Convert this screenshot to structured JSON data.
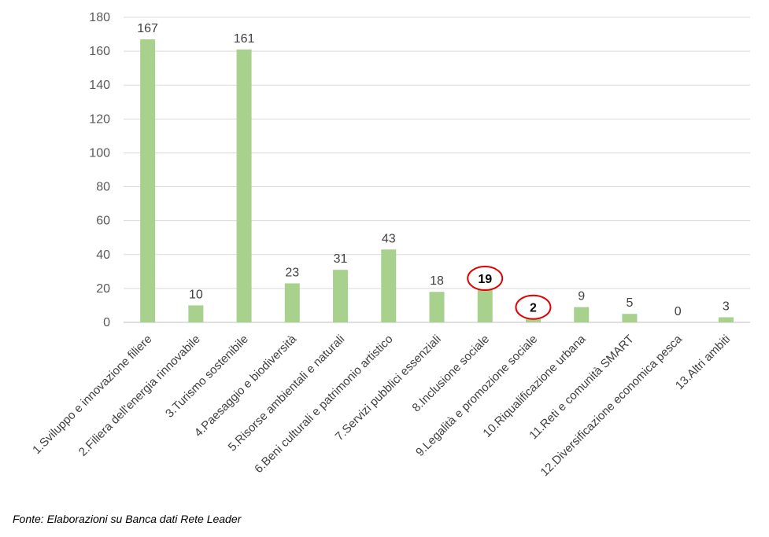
{
  "chart_data": {
    "type": "bar",
    "categories": [
      "1.Sviluppo e innovazione filiere",
      "2.Filiera dell'energia rinnovabile",
      "3.Turismo sostenibile",
      "4.Paesaggio e biodiversità",
      "5.Risorse ambientali e naturali",
      "6.Beni culturali e patrimonio artistico",
      "7.Servizi pubblici essenziali",
      "8.Inclusione sociale",
      "9.Legalità e promozione sociale",
      "10.Riqualificazione urbana",
      "11.Reti e comunità SMART",
      "12.Diversificazione economica pesca",
      "13.Altri ambiti"
    ],
    "values": [
      167,
      10,
      161,
      23,
      31,
      43,
      18,
      19,
      2,
      9,
      5,
      0,
      3
    ],
    "highlighted": [
      7,
      8
    ],
    "ylim": [
      0,
      180
    ],
    "yticks": [
      0,
      20,
      40,
      60,
      80,
      100,
      120,
      140,
      160,
      180
    ],
    "grid": true,
    "legend": "none",
    "bar_color": "#a9d18e",
    "highlight_color": "#e00000",
    "title": "",
    "xlabel": "",
    "ylabel": ""
  },
  "source_note": "Fonte: Elaborazioni su Banca dati Rete Leader"
}
